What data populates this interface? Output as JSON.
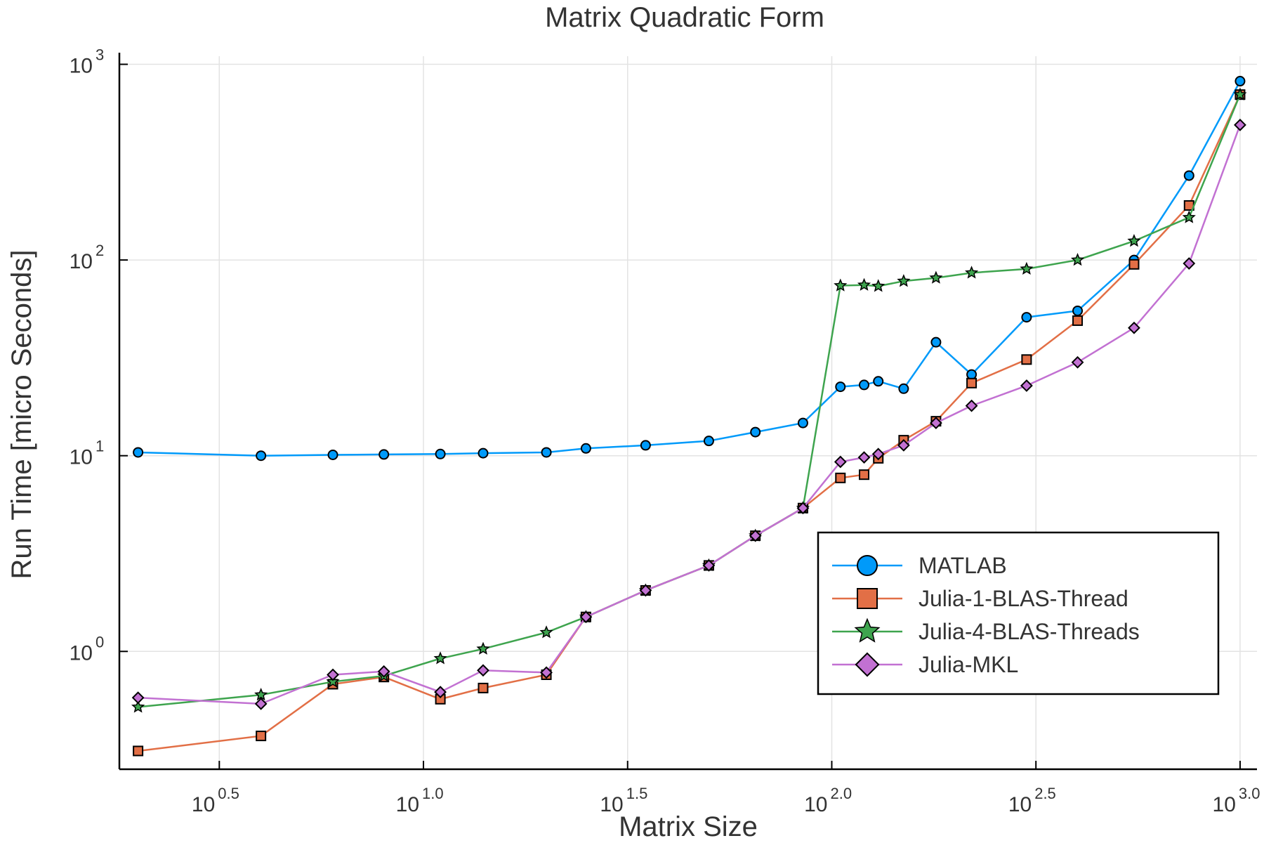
{
  "chart_data": {
    "type": "line",
    "title": "Matrix Quadratic Form",
    "xlabel": "Matrix Size",
    "ylabel": "Run Time  [micro Seconds]",
    "xscale": "log",
    "yscale": "log",
    "xlim": [
      1.8,
      1100
    ],
    "ylim": [
      0.25,
      1100
    ],
    "xticks": [
      {
        "value": 3.1623,
        "base": "10",
        "exp": "0.5"
      },
      {
        "value": 10,
        "base": "10",
        "exp": "1.0"
      },
      {
        "value": 31.623,
        "base": "10",
        "exp": "1.5"
      },
      {
        "value": 100,
        "base": "10",
        "exp": "2.0"
      },
      {
        "value": 316.23,
        "base": "10",
        "exp": "2.5"
      },
      {
        "value": 1000,
        "base": "10",
        "exp": "3.0"
      }
    ],
    "yticks": [
      {
        "value": 1,
        "base": "10",
        "exp": "0"
      },
      {
        "value": 10,
        "base": "10",
        "exp": "1"
      },
      {
        "value": 100,
        "base": "10",
        "exp": "2"
      },
      {
        "value": 1000,
        "base": "10",
        "exp": "3"
      }
    ],
    "grid": true,
    "legend_position": "bottom-right",
    "x": [
      2,
      4,
      6,
      8,
      11,
      14,
      20,
      25,
      35,
      50,
      65,
      85,
      105,
      120,
      130,
      150,
      180,
      220,
      300,
      400,
      550,
      750,
      1000
    ],
    "series": [
      {
        "name": "MATLAB",
        "color": "#009AFA",
        "marker": "circle",
        "values": [
          10.4,
          10,
          10.1,
          10.15,
          10.2,
          10.3,
          10.4,
          10.9,
          11.3,
          11.9,
          13.2,
          14.7,
          22.5,
          23,
          24,
          22,
          38,
          26,
          51,
          55,
          100,
          270,
          820
        ]
      },
      {
        "name": "Julia-1-BLAS-Thread",
        "color": "#E26F46",
        "marker": "square",
        "values": [
          0.31,
          0.37,
          0.68,
          0.74,
          0.57,
          0.65,
          0.76,
          1.5,
          2.05,
          2.75,
          3.9,
          5.4,
          7.7,
          8,
          9.7,
          12,
          15,
          23.5,
          31,
          49,
          95,
          190,
          700
        ]
      },
      {
        "name": "Julia-4-BLAS-Threads",
        "color": "#3EA44E",
        "marker": "star",
        "values": [
          0.52,
          0.6,
          0.7,
          0.75,
          0.92,
          1.03,
          1.25,
          1.5,
          2.05,
          2.75,
          3.9,
          5.4,
          74,
          74.5,
          73.5,
          78,
          81,
          86,
          90,
          100,
          125,
          165,
          700
        ]
      },
      {
        "name": "Julia-MKL",
        "color": "#C271D2",
        "marker": "diamond",
        "values": [
          0.58,
          0.54,
          0.76,
          0.79,
          0.62,
          0.8,
          0.78,
          1.5,
          2.05,
          2.75,
          3.9,
          5.4,
          9.3,
          9.8,
          10.2,
          11.3,
          14.7,
          18,
          22.8,
          30,
          45,
          96,
          490
        ]
      }
    ]
  }
}
